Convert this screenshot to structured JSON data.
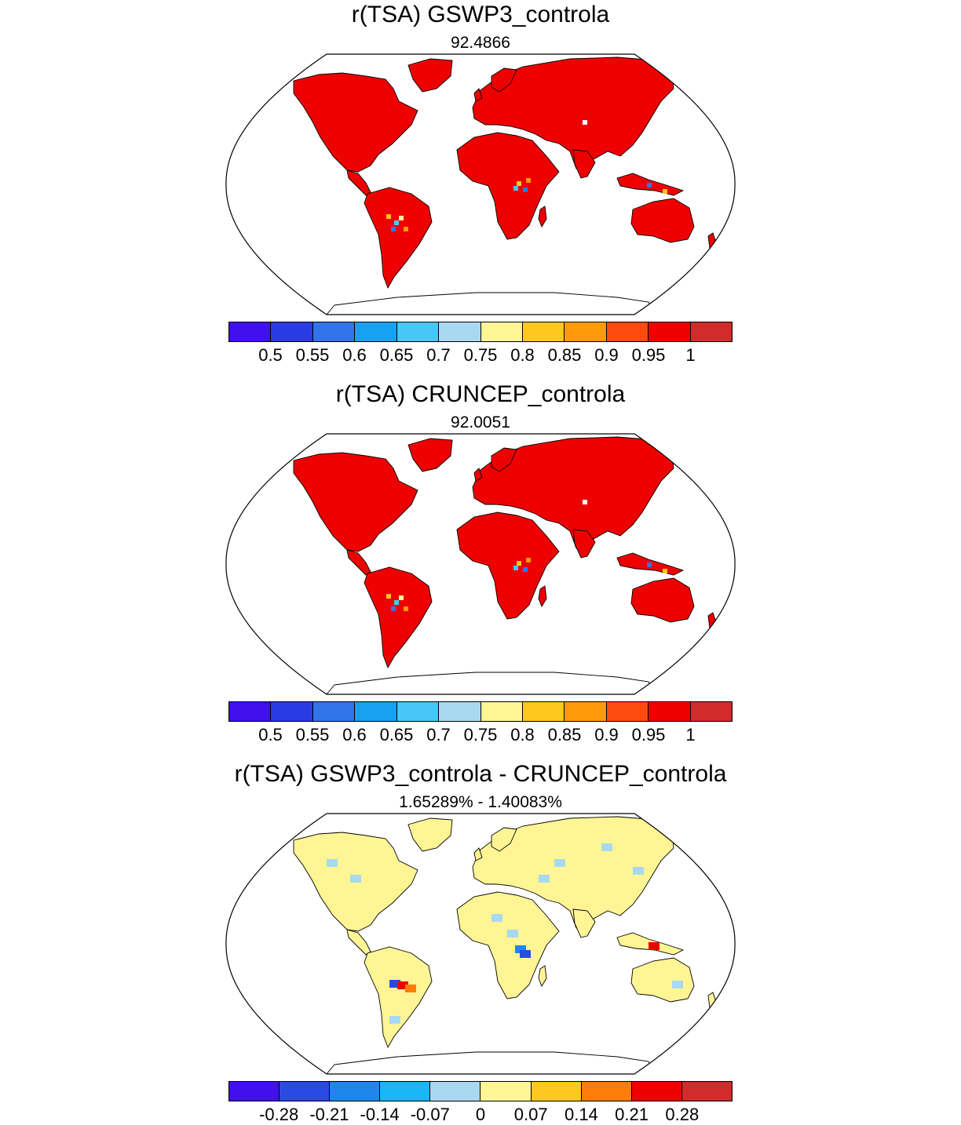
{
  "panels": [
    {
      "title": "r(TSA) GSWP3_controla",
      "subtitle": "92.4866",
      "land_color": "#ee0000",
      "colorbar": {
        "colors": [
          "#4010ee",
          "#2a3be3",
          "#3275ea",
          "#1aa0f0",
          "#48c6f6",
          "#a9d9f1",
          "#fff595",
          "#ffc81e",
          "#ff9a0a",
          "#ff4a10",
          "#ee0000",
          "#d12b2b"
        ],
        "labels": [
          "0.5",
          "0.55",
          "0.6",
          "0.65",
          "0.7",
          "0.75",
          "0.8",
          "0.85",
          "0.9",
          "0.95",
          "1"
        ]
      }
    },
    {
      "title": "r(TSA) CRUNCEP_controla",
      "subtitle": "92.0051",
      "land_color": "#ee0000",
      "colorbar": {
        "colors": [
          "#4010ee",
          "#2a3be3",
          "#3275ea",
          "#1aa0f0",
          "#48c6f6",
          "#a9d9f1",
          "#fff595",
          "#ffc81e",
          "#ff9a0a",
          "#ff4a10",
          "#ee0000",
          "#d12b2b"
        ],
        "labels": [
          "0.5",
          "0.55",
          "0.6",
          "0.65",
          "0.7",
          "0.75",
          "0.8",
          "0.85",
          "0.9",
          "0.95",
          "1"
        ]
      }
    },
    {
      "title": "r(TSA) GSWP3_controla - CRUNCEP_controla",
      "subtitle": "1.65289% - 1.40083%",
      "land_color": "#fff595",
      "colorbar": {
        "colors": [
          "#4010ee",
          "#2a4ae6",
          "#1f86ee",
          "#19b8f4",
          "#a9d9f1",
          "#fff595",
          "#ffc81e",
          "#ff7d0a",
          "#ee0000",
          "#d12b2b"
        ],
        "labels": [
          "-0.28",
          "-0.21",
          "-0.14",
          "-0.07",
          "0",
          "0.07",
          "0.14",
          "0.21",
          "0.28"
        ]
      }
    }
  ]
}
